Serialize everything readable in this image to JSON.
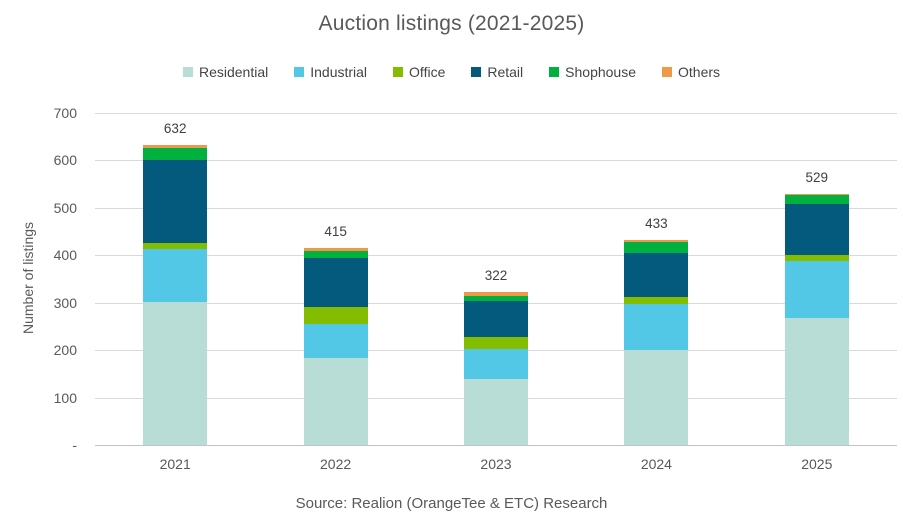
{
  "title": "Auction listings (2021-2025)",
  "source_note": "Source: Realion (OrangeTee & ETC) Research",
  "chart_data": {
    "type": "bar",
    "stacked": true,
    "title": "Auction listings (2021-2025)",
    "ylabel": "Number of listings",
    "xlabel": "",
    "grid": true,
    "legend_position": "top",
    "categories": [
      "2021",
      "2022",
      "2023",
      "2024",
      "2025"
    ],
    "totals": [
      632,
      415,
      322,
      433,
      529
    ],
    "series": [
      {
        "name": "Residential",
        "color": "#b8dcd6",
        "values": [
          302,
          183,
          140,
          201,
          268
        ]
      },
      {
        "name": "Industrial",
        "color": "#53c7e6",
        "values": [
          111,
          73,
          63,
          96,
          119
        ]
      },
      {
        "name": "Office",
        "color": "#84bd00",
        "values": [
          13,
          35,
          24,
          15,
          14
        ]
      },
      {
        "name": "Retail",
        "color": "#045a7d",
        "values": [
          174,
          103,
          76,
          93,
          108
        ]
      },
      {
        "name": "Shophouse",
        "color": "#00b140",
        "values": [
          27,
          15,
          12,
          23,
          18
        ]
      },
      {
        "name": "Others",
        "color": "#ef984a",
        "values": [
          5,
          6,
          7,
          5,
          2
        ]
      }
    ],
    "y_axis": {
      "min": 0,
      "max": 700,
      "step": 100,
      "tick_labels": [
        "700",
        "600",
        "500",
        "400",
        "300",
        "200",
        "100",
        "-"
      ]
    }
  },
  "colors": {
    "title_text": "#595959",
    "axis_text": "#595959",
    "value_label_text": "#404040",
    "gridline": "#d9d9d9",
    "baseline": "#c3c3c3",
    "background": "#ffffff"
  }
}
